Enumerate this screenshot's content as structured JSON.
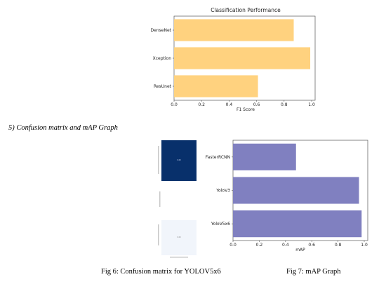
{
  "section": {
    "heading": "5)    Confusion matrix and mAP Graph"
  },
  "figure_top": {
    "chart_data": {
      "type": "bar",
      "orientation": "horizontal",
      "title": "Classification Performance",
      "categories": [
        "DenseNet",
        "Xception",
        "ResUnet"
      ],
      "values": [
        0.87,
        0.99,
        0.61
      ],
      "xlabel": "F1 Score",
      "ylabel": "",
      "xlim": [
        0,
        1.0
      ],
      "xticks": [
        "0.0",
        "0.2",
        "0.4",
        "0.6",
        "0.8",
        "1.0"
      ],
      "bar_color": "#ffd27f",
      "grid": false
    }
  },
  "confusion_matrix": {
    "dark_cell_color": "#08306b",
    "light_cell_color": "#f1f5fb",
    "caption": "Fig 6: Confusion matrix for YOLOV5x6"
  },
  "figure_map": {
    "chart_data": {
      "type": "bar",
      "orientation": "horizontal",
      "title": "",
      "categories": [
        "FasterRCNN",
        "YoloV3",
        "YoloV5x6"
      ],
      "values": [
        0.48,
        0.96,
        0.98
      ],
      "xlabel": "mAP",
      "ylabel": "",
      "xlim": [
        0,
        1.0
      ],
      "xticks": [
        "0.0",
        "0.2",
        "0.4",
        "0.6",
        "0.8",
        "1.0"
      ],
      "bar_color": "#8080c0",
      "grid": false
    },
    "caption": "Fig 7: mAP Graph"
  }
}
